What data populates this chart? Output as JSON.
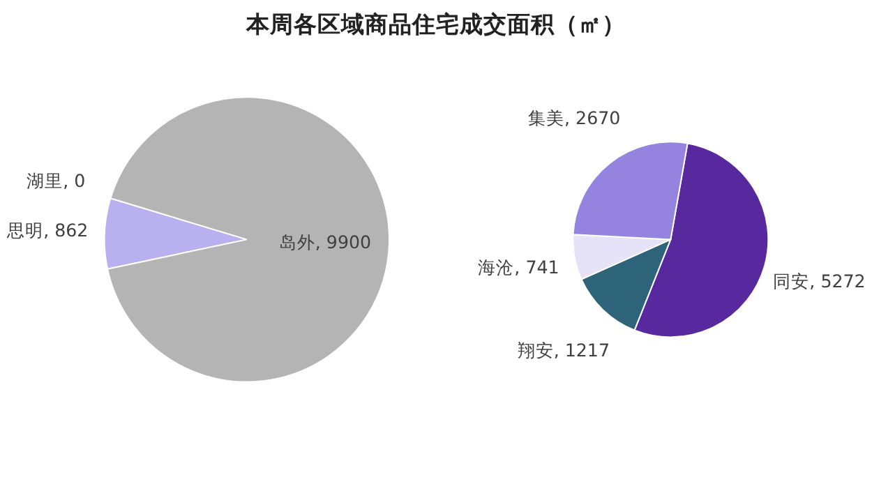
{
  "chart_data": [
    {
      "type": "pie",
      "title": "本周各区域商品住宅成交面积（㎡）",
      "categories": [
        "思明",
        "湖里",
        "岛外"
      ],
      "values": [
        862,
        0,
        9900
      ],
      "value_labels": [
        ", 862",
        ", 0",
        ", 9900"
      ],
      "colors": [
        "#b9b1ef",
        "#8f8fb8",
        "#b4b4b4"
      ],
      "legend": false
    },
    {
      "type": "pie",
      "categories": [
        "同安",
        "翔安",
        "海沧",
        "集美"
      ],
      "values": [
        5272,
        1217,
        741,
        2670
      ],
      "value_labels": [
        ", 5272",
        ", 1217",
        ", 741",
        ", 2670"
      ],
      "colors": [
        "#58289e",
        "#2e6479",
        "#e6e2f7",
        "#9583e0"
      ],
      "legend": false
    }
  ]
}
